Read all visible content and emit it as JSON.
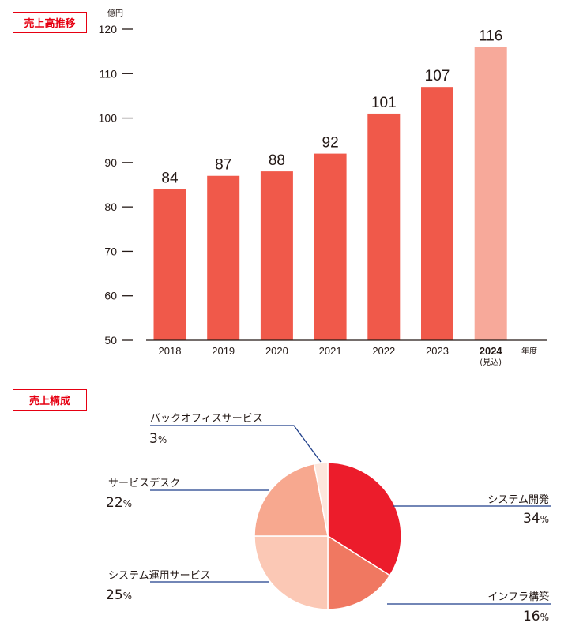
{
  "sections": {
    "sales_title": "売上高推移",
    "composition_title": "売上構成"
  },
  "chart_data": [
    {
      "type": "bar",
      "title": "売上高推移",
      "ylabel": "億円",
      "xlabel": "年度",
      "ylim": [
        50,
        120
      ],
      "yticks": [
        50,
        60,
        70,
        80,
        90,
        100,
        110,
        120
      ],
      "categories": [
        "2018",
        "2019",
        "2020",
        "2021",
        "2022",
        "2023",
        "2024"
      ],
      "category_notes": [
        "",
        "",
        "",
        "",
        "",
        "",
        "(見込)"
      ],
      "values": [
        84,
        87,
        88,
        92,
        101,
        107,
        116
      ],
      "colors": [
        "#f0594a",
        "#f0594a",
        "#f0594a",
        "#f0594a",
        "#f0594a",
        "#f0594a",
        "#f7a99a"
      ]
    },
    {
      "type": "pie",
      "title": "売上構成",
      "slices": [
        {
          "label": "システム開発",
          "value": 34,
          "color": "#ec1c2b"
        },
        {
          "label": "インフラ構築",
          "value": 16,
          "color": "#f07861"
        },
        {
          "label": "システム運用サービス",
          "value": 25,
          "color": "#fbc8b5"
        },
        {
          "label": "サービスデスク",
          "value": 22,
          "color": "#f7a88f"
        },
        {
          "label": "バックオフィスサービス",
          "value": 3,
          "color": "#fde6dc"
        }
      ],
      "unit": "%"
    }
  ]
}
